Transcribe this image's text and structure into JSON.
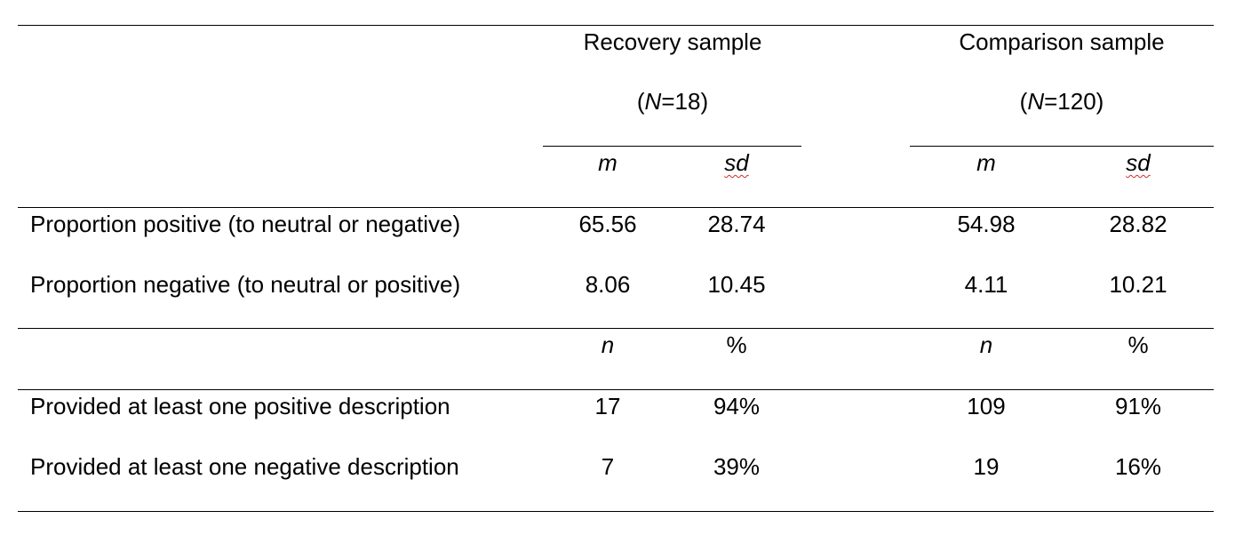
{
  "header": {
    "recovery": {
      "title": "Recovery sample",
      "n_label": "N",
      "n_value": "=18",
      "paren_open": "(",
      "paren_close": ")"
    },
    "comparison": {
      "title": "Comparison sample",
      "n_label": "N",
      "n_value": "=120",
      "paren_open": "(",
      "paren_close": ")"
    }
  },
  "subheaders": {
    "stats": {
      "mean": "m",
      "sd": "sd"
    },
    "counts": {
      "n": "n",
      "pct": "%"
    }
  },
  "rows": [
    {
      "label": "Proportion positive (to neutral or negative)",
      "rec_m": "65.56",
      "rec_sd": "28.74",
      "comp_m": "54.98",
      "comp_sd": "28.82"
    },
    {
      "label": "Proportion negative (to neutral or positive)",
      "rec_m": "8.06",
      "rec_sd": "10.45",
      "comp_m": "4.11",
      "comp_sd": "10.21"
    },
    {
      "label": "Provided at least one positive description",
      "rec_n": "17",
      "rec_pct": "94%",
      "comp_n": "109",
      "comp_pct": "91%"
    },
    {
      "label": "Provided at least one negative description",
      "rec_n": "7",
      "rec_pct": "39%",
      "comp_n": "19",
      "comp_pct": "16%"
    }
  ]
}
